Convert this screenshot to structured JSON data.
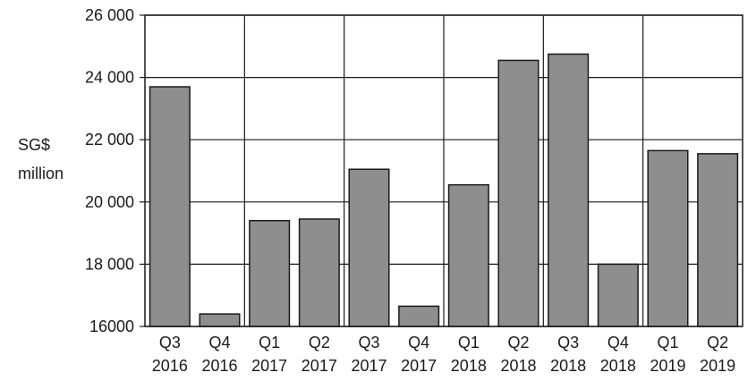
{
  "chart_data": {
    "type": "bar",
    "title": "",
    "xlabel": "",
    "ylabel": [
      "SG$",
      "million"
    ],
    "ylim": [
      16000,
      26000
    ],
    "yticks": [
      16000,
      18000,
      20000,
      22000,
      24000,
      26000
    ],
    "ytick_labels": [
      "16000",
      "18 000",
      "20 000",
      "22 000",
      "24 000",
      "26 000"
    ],
    "grid": true,
    "categories": [
      [
        "Q3",
        "2016"
      ],
      [
        "Q4",
        "2016"
      ],
      [
        "Q1",
        "2017"
      ],
      [
        "Q2",
        "2017"
      ],
      [
        "Q3",
        "2017"
      ],
      [
        "Q4",
        "2017"
      ],
      [
        "Q1",
        "2018"
      ],
      [
        "Q2",
        "2018"
      ],
      [
        "Q3",
        "2018"
      ],
      [
        "Q4",
        "2018"
      ],
      [
        "Q1",
        "2019"
      ],
      [
        "Q2",
        "2019"
      ]
    ],
    "values": [
      23700,
      16400,
      19400,
      19450,
      21050,
      16650,
      20550,
      24550,
      24750,
      18000,
      21650,
      21550
    ],
    "colors": {
      "bar": "#8e8e8e",
      "bar_edge": "#1a1a1a",
      "grid": "#1a1a1a",
      "axis": "#1a1a1a"
    }
  }
}
